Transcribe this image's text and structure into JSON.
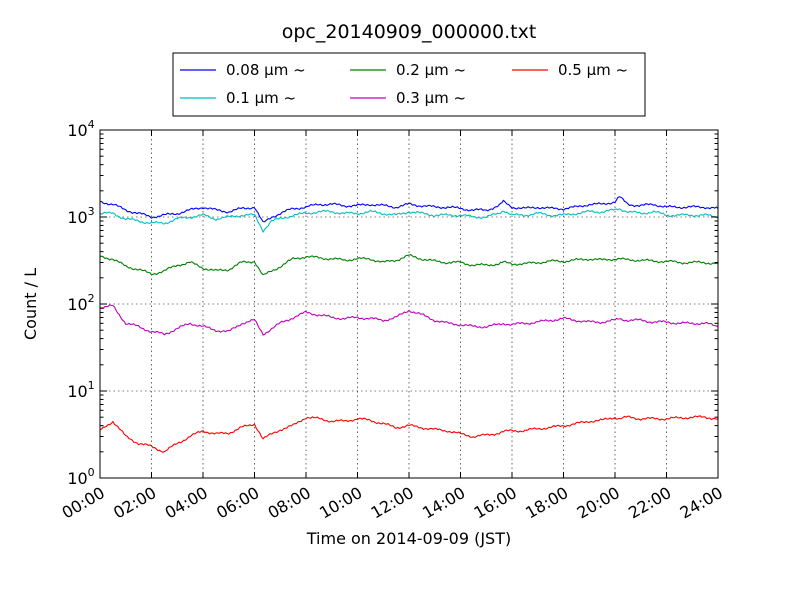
{
  "chart_data": {
    "type": "line",
    "title": "opc_20140909_000000.txt",
    "xlabel": "Time on 2014-09-09 (JST)",
    "ylabel": "Count / L",
    "yscale": "log",
    "ylim": [
      1,
      10000
    ],
    "xlim": [
      "2014-09-09 00:00",
      "2014-09-10 00:00"
    ],
    "x_ticks": [
      "00:00",
      "02:00",
      "04:00",
      "06:00",
      "08:00",
      "10:00",
      "12:00",
      "14:00",
      "16:00",
      "18:00",
      "20:00",
      "22:00",
      "24:00"
    ],
    "y_ticks": [
      {
        "base": "10",
        "exp": "0"
      },
      {
        "base": "10",
        "exp": "1"
      },
      {
        "base": "10",
        "exp": "2"
      },
      {
        "base": "10",
        "exp": "3"
      },
      {
        "base": "10",
        "exp": "4"
      }
    ],
    "grid": true,
    "legend_position": "top-center, outside plot",
    "x_time": [
      "00:00",
      "00:30",
      "01:00",
      "01:30",
      "02:00",
      "02:30",
      "03:00",
      "03:30",
      "04:00",
      "04:30",
      "05:00",
      "05:30",
      "06:00",
      "06:20",
      "06:40",
      "07:00",
      "07:30",
      "08:00",
      "08:30",
      "09:00",
      "09:30",
      "10:00",
      "10:30",
      "11:00",
      "11:30",
      "12:00",
      "12:30",
      "13:00",
      "13:30",
      "14:00",
      "14:30",
      "15:00",
      "15:30",
      "15:40",
      "16:00",
      "16:30",
      "17:00",
      "17:30",
      "18:00",
      "18:30",
      "19:00",
      "19:30",
      "20:00",
      "20:10",
      "20:30",
      "21:00",
      "21:30",
      "22:00",
      "22:30",
      "23:00",
      "23:30",
      "24:00"
    ],
    "series": [
      {
        "name": "0.08 μm ~",
        "color": "#0000ff",
        "values": [
          1500,
          1400,
          1200,
          1100,
          1000,
          1050,
          1100,
          1200,
          1300,
          1200,
          1150,
          1250,
          1300,
          850,
          1000,
          1100,
          1250,
          1300,
          1400,
          1400,
          1350,
          1350,
          1400,
          1350,
          1300,
          1400,
          1350,
          1300,
          1300,
          1250,
          1200,
          1200,
          1350,
          1500,
          1300,
          1250,
          1300,
          1250,
          1250,
          1300,
          1400,
          1400,
          1500,
          1700,
          1400,
          1350,
          1400,
          1300,
          1300,
          1300,
          1300,
          1250
        ]
      },
      {
        "name": "0.1 μm ~",
        "color": "#00bfbf",
        "values": [
          1100,
          1100,
          950,
          900,
          850,
          850,
          950,
          1000,
          1050,
          950,
          1000,
          1050,
          1050,
          700,
          900,
          950,
          1050,
          1100,
          1150,
          1150,
          1100,
          1100,
          1150,
          1100,
          1050,
          1150,
          1100,
          1050,
          1050,
          1050,
          1000,
          1000,
          1100,
          1200,
          1050,
          1050,
          1100,
          1050,
          1050,
          1100,
          1150,
          1150,
          1200,
          1250,
          1150,
          1100,
          1150,
          1050,
          1050,
          1050,
          1050,
          1000
        ]
      },
      {
        "name": "0.2 μm ~",
        "color": "#008000",
        "values": [
          350,
          330,
          270,
          250,
          220,
          240,
          280,
          300,
          260,
          240,
          250,
          300,
          310,
          210,
          240,
          270,
          330,
          350,
          340,
          330,
          320,
          330,
          330,
          300,
          320,
          360,
          330,
          310,
          300,
          300,
          280,
          280,
          290,
          300,
          290,
          290,
          300,
          310,
          310,
          320,
          330,
          320,
          330,
          330,
          320,
          320,
          310,
          310,
          300,
          300,
          300,
          290
        ]
      },
      {
        "name": "0.3 μm ~",
        "color": "#bf00bf",
        "values": [
          90,
          95,
          60,
          55,
          48,
          45,
          52,
          60,
          55,
          50,
          48,
          60,
          65,
          45,
          52,
          60,
          70,
          80,
          75,
          70,
          68,
          70,
          68,
          65,
          70,
          85,
          75,
          65,
          60,
          58,
          55,
          55,
          58,
          60,
          58,
          60,
          62,
          65,
          68,
          65,
          62,
          62,
          65,
          68,
          65,
          65,
          62,
          62,
          60,
          60,
          60,
          55
        ]
      },
      {
        "name": "0.5 μm ~",
        "color": "#ff0000",
        "values": [
          3.5,
          4.5,
          3.0,
          2.5,
          2.3,
          2.0,
          2.5,
          3.0,
          3.5,
          3.2,
          3.3,
          3.8,
          4.2,
          2.8,
          3.2,
          3.6,
          4.0,
          5.0,
          4.8,
          4.5,
          4.5,
          4.8,
          4.6,
          4.2,
          3.8,
          4.0,
          3.8,
          3.6,
          3.5,
          3.2,
          3.0,
          3.1,
          3.3,
          3.4,
          3.5,
          3.5,
          3.7,
          3.8,
          4.0,
          4.2,
          4.5,
          4.6,
          5.0,
          4.8,
          5.0,
          4.8,
          4.8,
          4.8,
          4.9,
          5.0,
          5.0,
          4.8
        ]
      }
    ]
  }
}
